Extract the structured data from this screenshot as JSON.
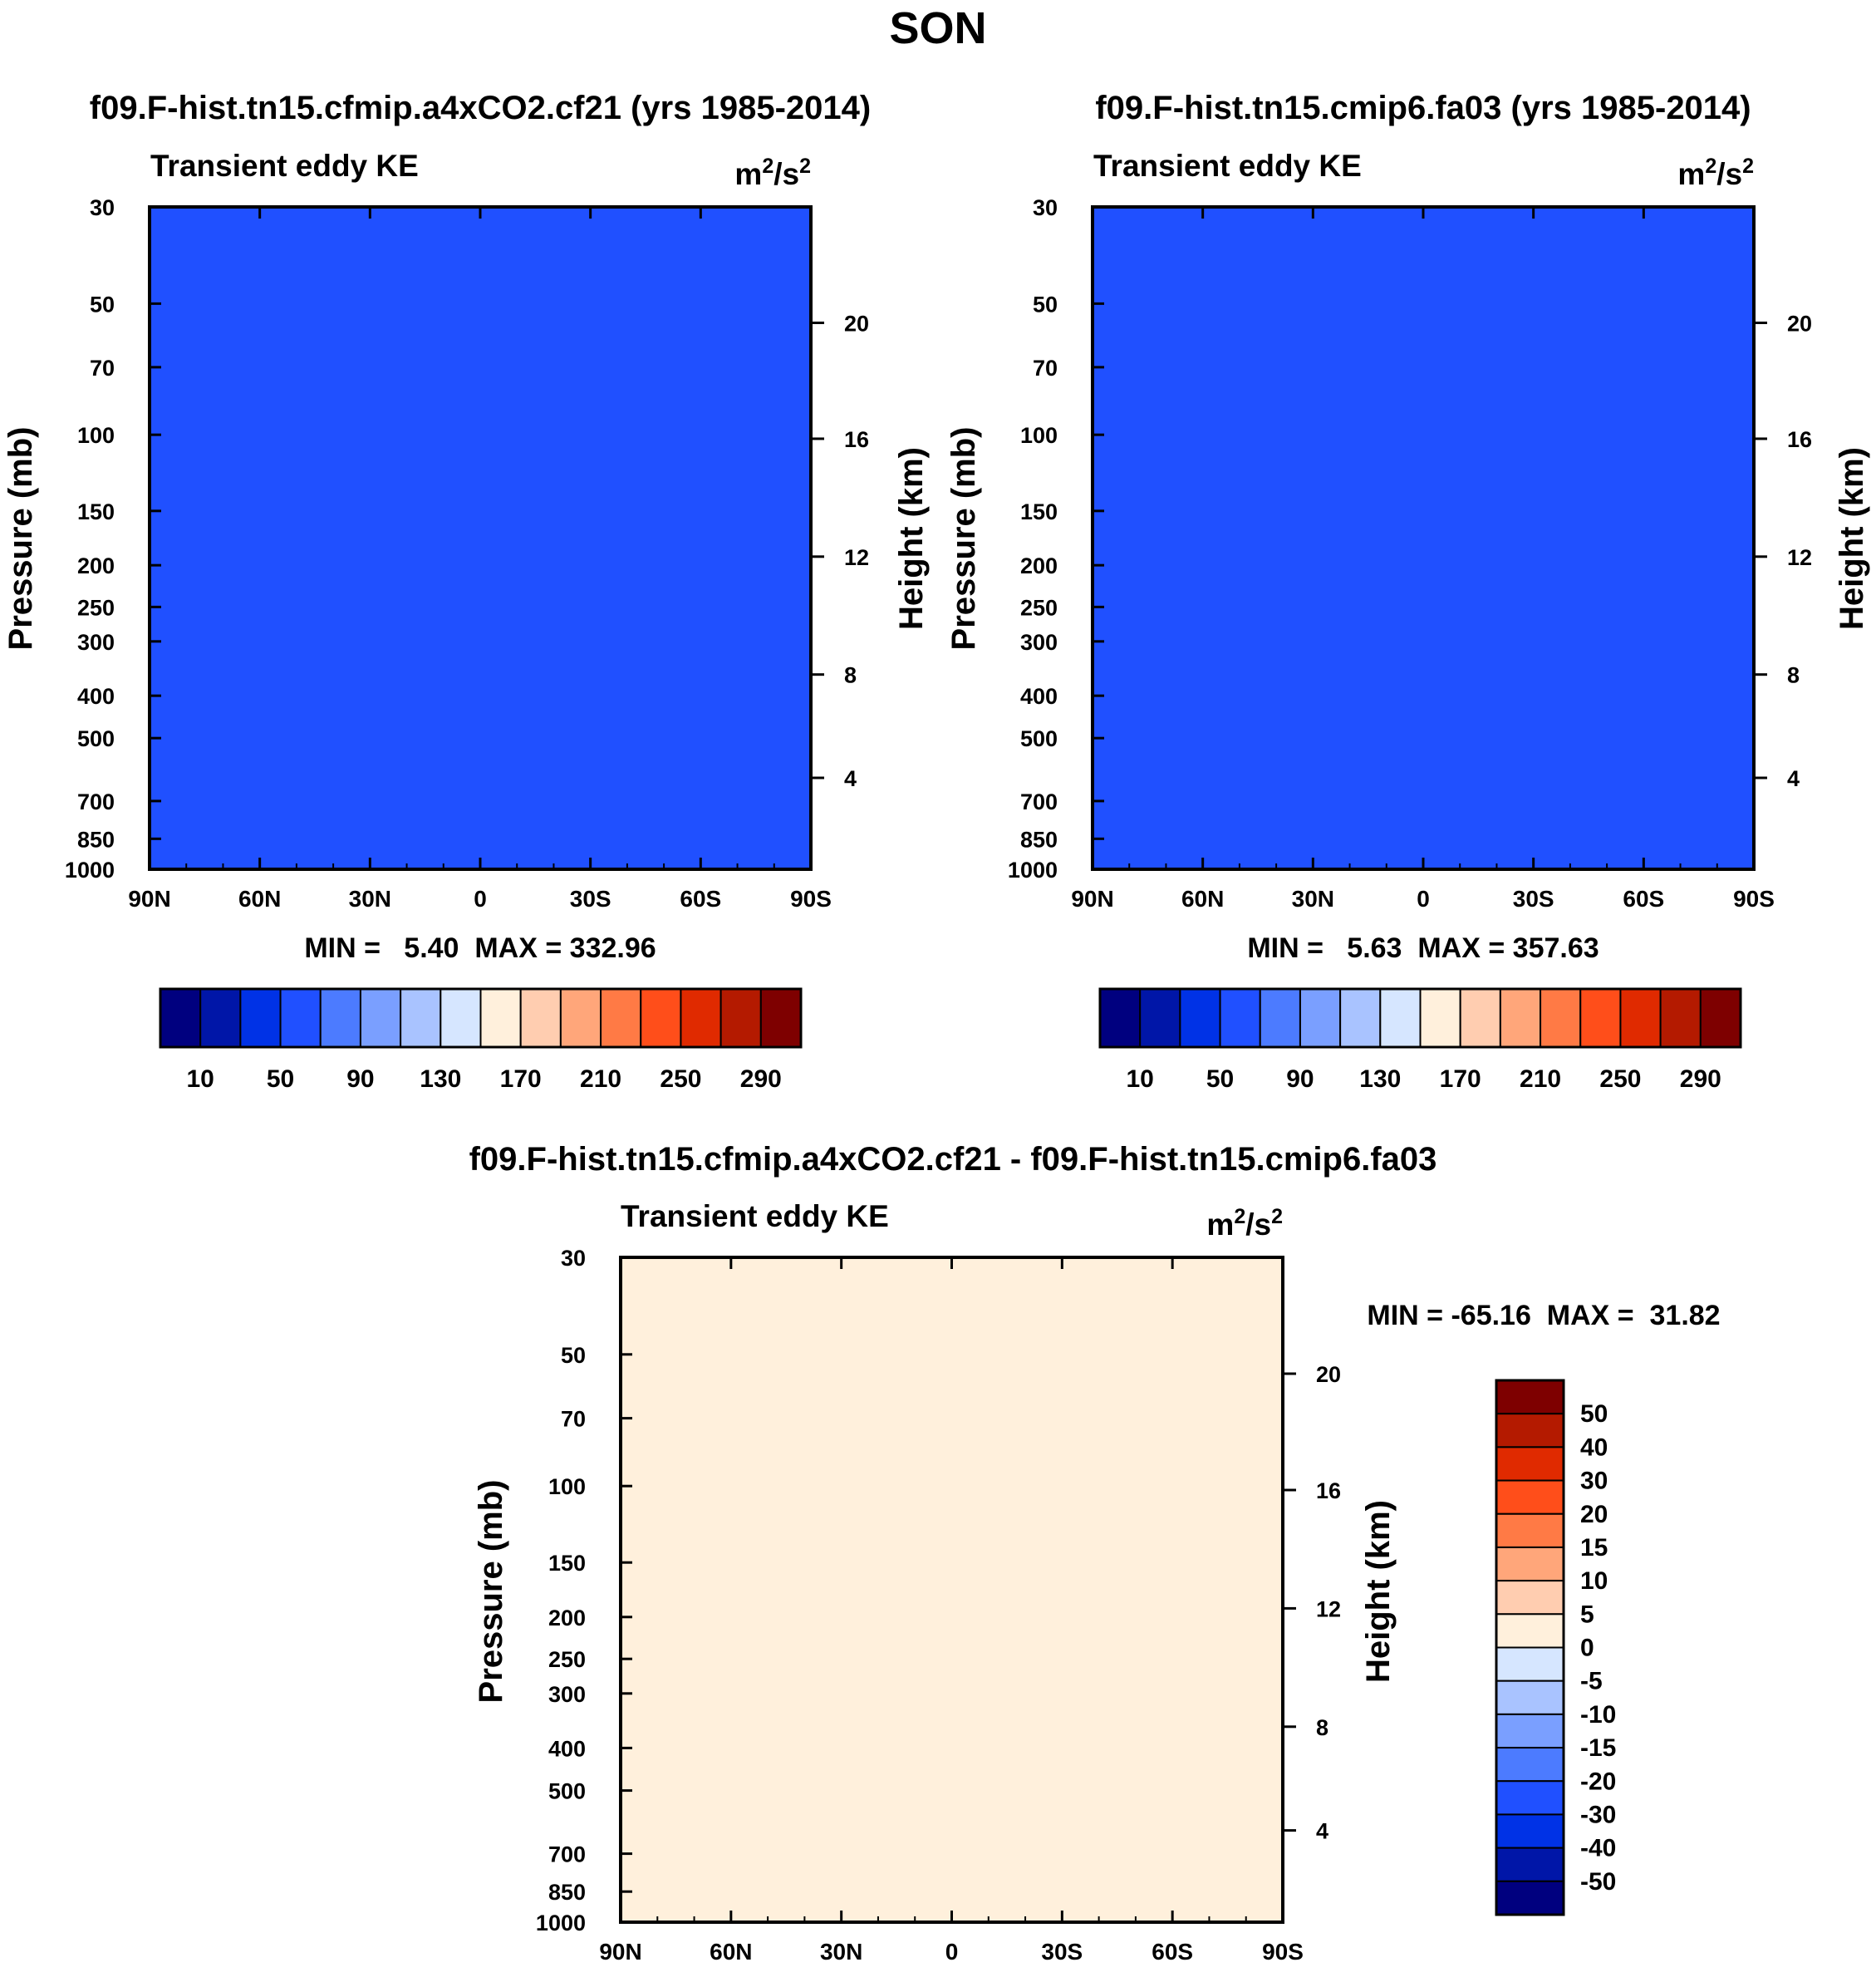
{
  "title": "SON",
  "palettes": {
    "abs": [
      "#00007f",
      "#0016a8",
      "#0032e6",
      "#2050ff",
      "#4c7bff",
      "#7a9fff",
      "#a9c3ff",
      "#d6e6ff",
      "#fff0dc",
      "#ffcdb0",
      "#ffa67a",
      "#ff7a45",
      "#ff4e1a",
      "#e02a00",
      "#b41a00",
      "#7e0000"
    ],
    "diff": [
      "#00007f",
      "#0016a8",
      "#0032e6",
      "#2050ff",
      "#4c7bff",
      "#7a9fff",
      "#a9c3ff",
      "#d6e6ff",
      "#fff0dc",
      "#ffcdb0",
      "#ffa67a",
      "#ff7a45",
      "#ff4e1a",
      "#e02a00",
      "#b41a00",
      "#7e0000"
    ]
  },
  "chart_data": [
    {
      "id": "panel-a",
      "type": "contour",
      "title": "f09.F-hist.tn15.cfmip.a4xCO2.cf21 (yrs 1985-2014)",
      "left_label": "Transient eddy KE",
      "units": "m²/s²",
      "units_base": "m",
      "units_mid": "/s",
      "units_sup": "2",
      "ylabel": "Pressure (mb)",
      "ylabel_right": "Height (km)",
      "xticks": [
        "90N",
        "60N",
        "30N",
        "0",
        "30S",
        "60S",
        "90S"
      ],
      "yticks": [
        "30",
        "50",
        "70",
        "100",
        "150",
        "200",
        "250",
        "300",
        "400",
        "500",
        "700",
        "850",
        "1000"
      ],
      "height_ticks": [
        "4",
        "8",
        "12",
        "16",
        "20"
      ],
      "min_max": "MIN =   5.40  MAX = 332.96",
      "min": 5.4,
      "max": 332.96,
      "colorbar_labels": [
        "10",
        "50",
        "90",
        "130",
        "170",
        "210",
        "250",
        "290"
      ],
      "levels": [
        10,
        30,
        50,
        70,
        90,
        110,
        130,
        150,
        170,
        190,
        210,
        230,
        250,
        270,
        290
      ]
    },
    {
      "id": "panel-b",
      "type": "contour",
      "title": "f09.F-hist.tn15.cmip6.fa03 (yrs 1985-2014)",
      "left_label": "Transient eddy KE",
      "units": "m²/s²",
      "units_base": "m",
      "units_mid": "/s",
      "units_sup": "2",
      "ylabel": "Pressure (mb)",
      "ylabel_right": "Height (km)",
      "xticks": [
        "90N",
        "60N",
        "30N",
        "0",
        "30S",
        "60S",
        "90S"
      ],
      "yticks": [
        "30",
        "50",
        "70",
        "100",
        "150",
        "200",
        "250",
        "300",
        "400",
        "500",
        "700",
        "850",
        "1000"
      ],
      "height_ticks": [
        "4",
        "8",
        "12",
        "16",
        "20"
      ],
      "min_max": "MIN =   5.63  MAX = 357.63",
      "min": 5.63,
      "max": 357.63,
      "colorbar_labels": [
        "10",
        "50",
        "90",
        "130",
        "170",
        "210",
        "250",
        "290"
      ],
      "levels": [
        10,
        30,
        50,
        70,
        90,
        110,
        130,
        150,
        170,
        190,
        210,
        230,
        250,
        270,
        290
      ]
    },
    {
      "id": "panel-diff",
      "type": "contour",
      "title": "f09.F-hist.tn15.cfmip.a4xCO2.cf21 - f09.F-hist.tn15.cmip6.fa03",
      "left_label": "Transient eddy KE",
      "units": "m²/s²",
      "units_base": "m",
      "units_mid": "/s",
      "units_sup": "2",
      "ylabel": "Pressure (mb)",
      "ylabel_right": "Height (km)",
      "xticks": [
        "90N",
        "60N",
        "30N",
        "0",
        "30S",
        "60S",
        "90S"
      ],
      "yticks": [
        "30",
        "50",
        "70",
        "100",
        "150",
        "200",
        "250",
        "300",
        "400",
        "500",
        "700",
        "850",
        "1000"
      ],
      "height_ticks": [
        "4",
        "8",
        "12",
        "16",
        "20"
      ],
      "min_max": "MIN = -65.16  MAX =  31.82",
      "min": -65.16,
      "max": 31.82,
      "colorbar_labels": [
        "50",
        "40",
        "30",
        "20",
        "15",
        "10",
        "5",
        "0",
        "-5",
        "-10",
        "-15",
        "-20",
        "-30",
        "-40",
        "-50"
      ],
      "levels": [
        -50,
        -40,
        -30,
        -20,
        -15,
        -10,
        -5,
        0,
        5,
        10,
        15,
        20,
        30,
        40,
        50
      ]
    }
  ]
}
